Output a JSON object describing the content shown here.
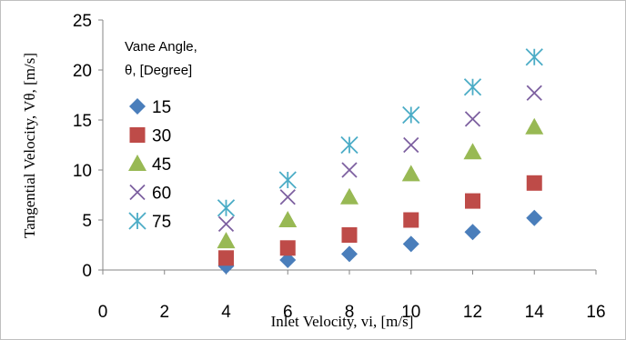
{
  "chart_data": {
    "type": "scatter",
    "title": "",
    "xlabel": "Inlet Velocity, vi, [m/s]",
    "ylabel": "Tangential Velocity, Vθ, [m/s]",
    "xlim": [
      0,
      16
    ],
    "ylim": [
      0,
      25
    ],
    "x_ticks": [
      "0",
      "2",
      "4",
      "6",
      "8",
      "10",
      "12",
      "14",
      "16"
    ],
    "y_ticks": [
      "0",
      "5",
      "10",
      "15",
      "20",
      "25"
    ],
    "grid": false,
    "legend_position": "left",
    "legend_title_lines": [
      "Vane Angle,",
      "θ, [Degree]"
    ],
    "x": [
      4,
      6,
      8,
      10,
      12,
      14
    ],
    "series": [
      {
        "name": "15",
        "marker": "diamond",
        "color": "#4a7ebb",
        "values": [
          0.4,
          1.0,
          1.6,
          2.6,
          3.8,
          5.2
        ]
      },
      {
        "name": "30",
        "marker": "square",
        "color": "#be4b48",
        "values": [
          1.2,
          2.2,
          3.5,
          5.0,
          6.9,
          8.7
        ]
      },
      {
        "name": "45",
        "marker": "triangle",
        "color": "#98b954",
        "values": [
          2.9,
          5.0,
          7.3,
          9.6,
          11.8,
          14.3
        ]
      },
      {
        "name": "60",
        "marker": "x",
        "color": "#7d60a0",
        "values": [
          4.6,
          7.3,
          10.0,
          12.5,
          15.1,
          17.7
        ]
      },
      {
        "name": "75",
        "marker": "star",
        "color": "#4bacc6",
        "values": [
          6.2,
          9.0,
          12.5,
          15.5,
          18.3,
          21.3
        ]
      }
    ]
  }
}
